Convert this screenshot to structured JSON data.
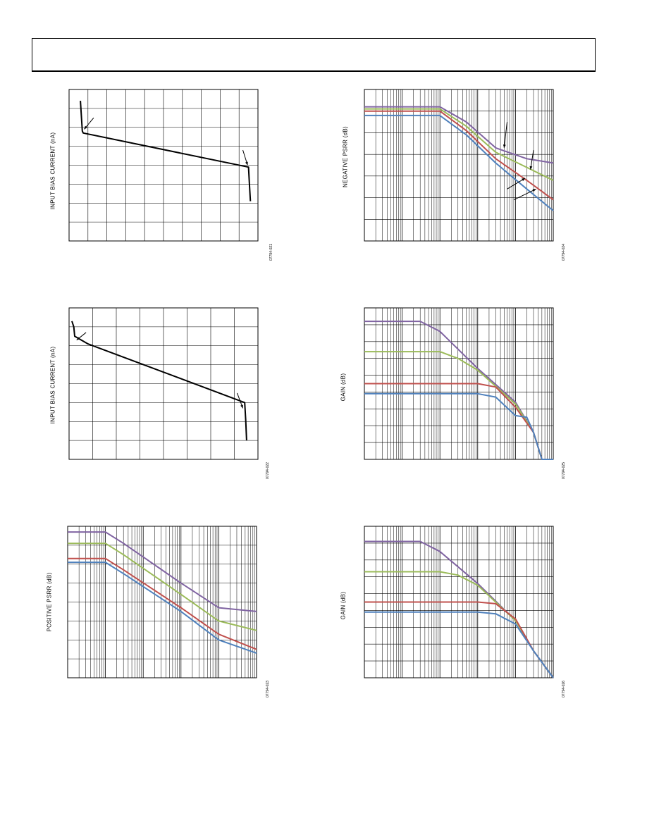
{
  "page": {
    "header_text": ""
  },
  "charts": [
    {
      "id": "ch1",
      "ylabel": "INPUT BIAS CURRENT (nA)",
      "fig_id": "07794-021"
    },
    {
      "id": "ch2",
      "ylabel": "NEGATIVE PSRR (dB)",
      "fig_id": "07794-024"
    },
    {
      "id": "ch3",
      "ylabel": "INPUT BIAS CURRENT (nA)",
      "fig_id": "07794-022"
    },
    {
      "id": "ch4",
      "ylabel": "GAIN (dB)",
      "fig_id": "07794-025"
    },
    {
      "id": "ch5",
      "ylabel": "POSITIVE PSRR (dB)",
      "fig_id": "07794-023"
    },
    {
      "id": "ch6",
      "ylabel": "GAIN (dB)",
      "fig_id": "07794-026"
    }
  ],
  "colors": {
    "purple": "#8064a2",
    "green": "#9bbb59",
    "red": "#c0504d",
    "blue": "#4f81bd",
    "black": "#000000",
    "grid": "#000000"
  },
  "chart_data": [
    {
      "type": "line",
      "chart_id": "ch1",
      "xlabel": "",
      "ylabel": "INPUT BIAS CURRENT (nA)",
      "xscale": "linear",
      "xlim": [
        0,
        10
      ],
      "ylim": [
        0,
        8
      ],
      "grid": true,
      "series": [
        {
          "color": "black",
          "x": [
            0.6,
            0.7,
            0.75,
            9.5,
            9.55,
            9.6
          ],
          "y": [
            7.4,
            5.8,
            5.7,
            3.9,
            3.0,
            2.1
          ]
        }
      ]
    },
    {
      "type": "line",
      "chart_id": "ch2",
      "xlabel": "",
      "ylabel": "NEGATIVE PSRR (dB)",
      "xscale": "log",
      "xlim": [
        1,
        100000
      ],
      "ylim": [
        0,
        7
      ],
      "grid": true,
      "series": [
        {
          "color": "purple",
          "x": [
            1,
            100,
            500,
            3000,
            20000,
            100000
          ],
          "y": [
            6.2,
            6.2,
            5.5,
            4.3,
            3.8,
            3.6
          ]
        },
        {
          "color": "green",
          "x": [
            1,
            100,
            500,
            3000,
            20000,
            100000
          ],
          "y": [
            6.1,
            6.1,
            5.3,
            4.1,
            3.4,
            2.8
          ]
        },
        {
          "color": "red",
          "x": [
            1,
            100,
            500,
            3000,
            20000,
            100000
          ],
          "y": [
            6.0,
            6.0,
            5.1,
            3.8,
            2.8,
            1.9
          ]
        },
        {
          "color": "blue",
          "x": [
            1,
            100,
            500,
            3000,
            20000,
            100000
          ],
          "y": [
            5.8,
            5.8,
            4.9,
            3.6,
            2.4,
            1.4
          ]
        }
      ]
    },
    {
      "type": "line",
      "chart_id": "ch3",
      "xlabel": "",
      "ylabel": "INPUT BIAS CURRENT (nA)",
      "xscale": "linear",
      "xlim": [
        0,
        10
      ],
      "ylim": [
        0,
        8
      ],
      "grid": true,
      "series": [
        {
          "color": "black",
          "x": [
            0.15,
            0.25,
            0.3,
            1.0,
            9.3,
            9.35,
            9.4
          ],
          "y": [
            7.3,
            7.0,
            6.5,
            6.1,
            3.0,
            2.1,
            1.0
          ]
        }
      ]
    },
    {
      "type": "line",
      "chart_id": "ch4",
      "xlabel": "",
      "ylabel": "GAIN (dB)",
      "xscale": "log",
      "xlim": [
        1,
        100000
      ],
      "ylim": [
        0,
        9
      ],
      "grid": true,
      "series": [
        {
          "color": "purple",
          "x": [
            1,
            30,
            100,
            1000,
            10000,
            30000,
            50000,
            100000
          ],
          "y": [
            8.2,
            8.2,
            7.6,
            5.4,
            3.4,
            1.6,
            0.0,
            -0.5
          ]
        },
        {
          "color": "green",
          "x": [
            1,
            100,
            300,
            1000,
            10000,
            30000,
            50000,
            100000
          ],
          "y": [
            6.4,
            6.4,
            6.0,
            5.3,
            3.3,
            1.6,
            0.0,
            -0.5
          ]
        },
        {
          "color": "red",
          "x": [
            1,
            1000,
            3000,
            10000,
            30000,
            50000,
            100000
          ],
          "y": [
            4.5,
            4.5,
            4.3,
            3.1,
            1.6,
            0.0,
            -0.5
          ]
        },
        {
          "color": "blue",
          "x": [
            1,
            1000,
            3000,
            10000,
            20000,
            30000,
            50000,
            100000
          ],
          "y": [
            3.9,
            3.9,
            3.7,
            2.6,
            2.5,
            1.6,
            0.0,
            -0.5
          ]
        }
      ]
    },
    {
      "type": "line",
      "chart_id": "ch5",
      "xlabel": "",
      "ylabel": "POSITIVE PSRR (dB)",
      "xscale": "log",
      "xlim": [
        1,
        100000
      ],
      "ylim": [
        0,
        8
      ],
      "grid": true,
      "series": [
        {
          "color": "purple",
          "x": [
            1,
            10,
            30,
            1000,
            10000,
            100000
          ],
          "y": [
            7.7,
            7.7,
            7.1,
            5.0,
            3.7,
            3.5
          ]
        },
        {
          "color": "green",
          "x": [
            1,
            10,
            30,
            1000,
            10000,
            100000
          ],
          "y": [
            7.1,
            7.1,
            6.5,
            4.4,
            3.0,
            2.5
          ]
        },
        {
          "color": "red",
          "x": [
            1,
            10,
            30,
            1000,
            10000,
            100000
          ],
          "y": [
            6.3,
            6.3,
            5.7,
            3.7,
            2.3,
            1.5
          ]
        },
        {
          "color": "blue",
          "x": [
            1,
            10,
            30,
            1000,
            10000,
            100000
          ],
          "y": [
            6.1,
            6.1,
            5.5,
            3.5,
            2.0,
            1.3
          ]
        }
      ]
    },
    {
      "type": "line",
      "chart_id": "ch6",
      "xlabel": "",
      "ylabel": "GAIN (dB)",
      "xscale": "log",
      "xlim": [
        1,
        100000
      ],
      "ylim": [
        0,
        9
      ],
      "grid": true,
      "series": [
        {
          "color": "purple",
          "x": [
            1,
            30,
            100,
            1000,
            10000,
            30000,
            100000
          ],
          "y": [
            8.1,
            8.1,
            7.5,
            5.6,
            3.4,
            1.6,
            0.0
          ]
        },
        {
          "color": "green",
          "x": [
            1,
            100,
            300,
            1000,
            10000,
            30000,
            100000
          ],
          "y": [
            6.3,
            6.3,
            6.1,
            5.5,
            3.4,
            1.6,
            0.0
          ]
        },
        {
          "color": "red",
          "x": [
            1,
            1000,
            3000,
            10000,
            30000,
            100000
          ],
          "y": [
            4.5,
            4.5,
            4.4,
            3.5,
            1.6,
            0.0
          ]
        },
        {
          "color": "blue",
          "x": [
            1,
            1000,
            3000,
            10000,
            30000,
            100000
          ],
          "y": [
            3.9,
            3.9,
            3.8,
            3.2,
            1.6,
            0.0
          ]
        }
      ]
    }
  ]
}
